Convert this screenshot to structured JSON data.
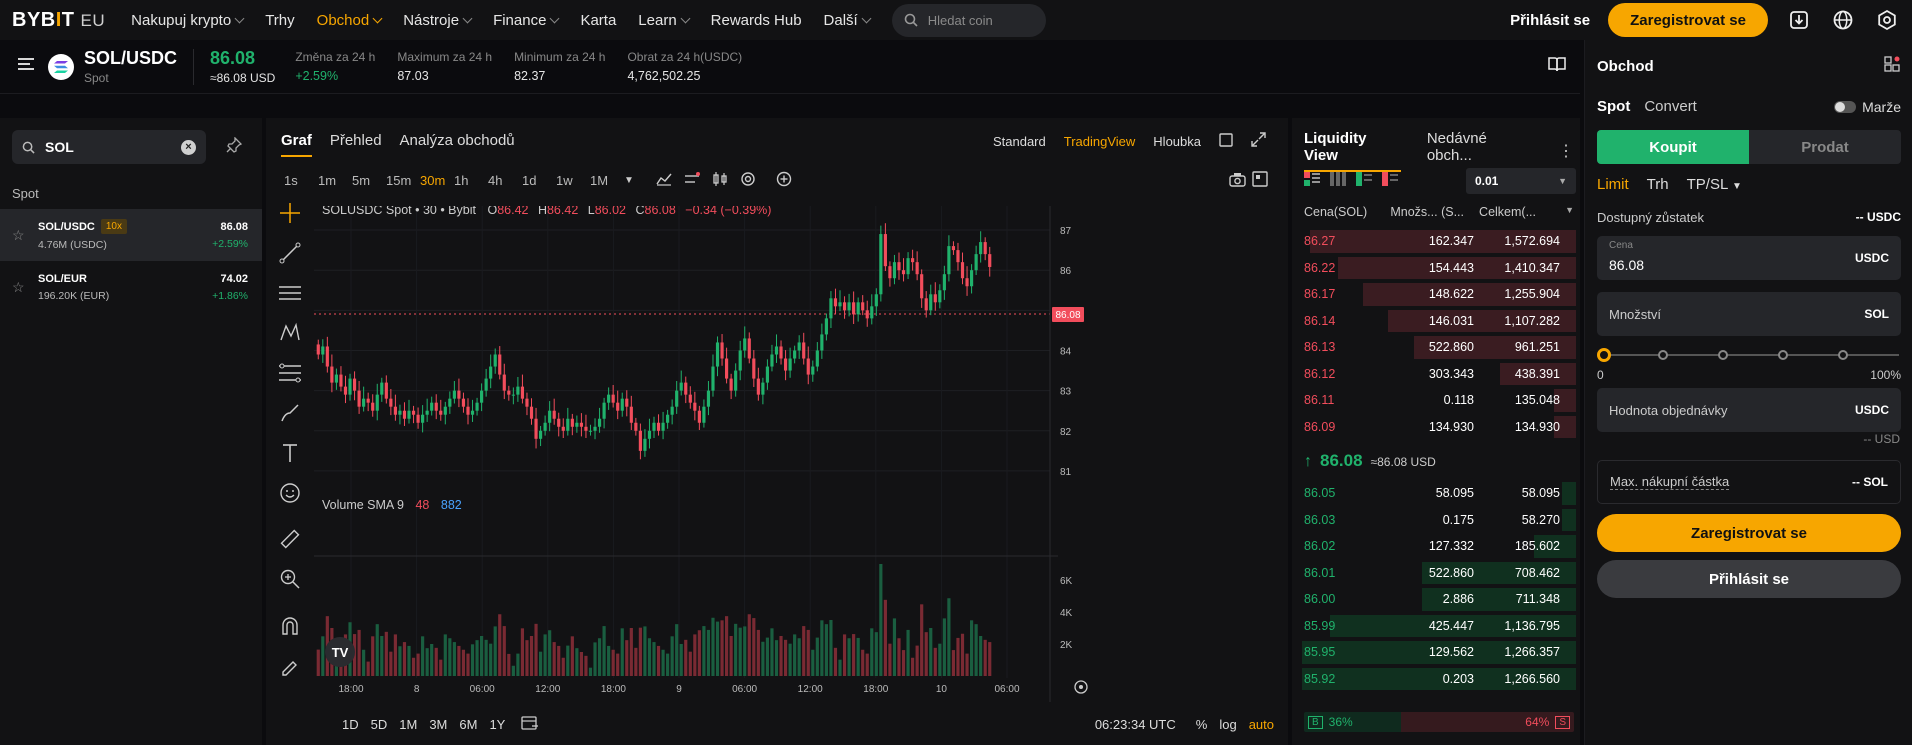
{
  "nav": {
    "logo_text": "BYBIT",
    "logo_region": "EU",
    "items": [
      {
        "label": "Nakupuj krypto",
        "dropdown": true,
        "active": false
      },
      {
        "label": "Trhy",
        "dropdown": false,
        "active": false
      },
      {
        "label": "Obchod",
        "dropdown": true,
        "active": true
      },
      {
        "label": "Nástroje",
        "dropdown": true,
        "active": false
      },
      {
        "label": "Finance",
        "dropdown": true,
        "active": false
      },
      {
        "label": "Karta",
        "dropdown": false,
        "active": false
      },
      {
        "label": "Learn",
        "dropdown": true,
        "active": false
      },
      {
        "label": "Rewards Hub",
        "dropdown": false,
        "active": false
      },
      {
        "label": "Další",
        "dropdown": true,
        "active": false
      }
    ],
    "search_placeholder": "Hledat coin",
    "login_label": "Přihlásit se",
    "register_label": "Zaregistrovat se",
    "accent_color": "#f7a600"
  },
  "ticker": {
    "pair": "SOL/USDC",
    "market": "Spot",
    "price": "86.08",
    "price_usd": "≈86.08 USD",
    "stats": [
      {
        "label": "Změna za 24 h",
        "value": "+2.59%",
        "positive": true
      },
      {
        "label": "Maximum za 24 h",
        "value": "87.03",
        "positive": false
      },
      {
        "label": "Minimum za 24 h",
        "value": "82.37",
        "positive": false
      },
      {
        "label": "Obrat za 24 h(USDC)",
        "value": "4,762,502.25",
        "positive": false
      }
    ]
  },
  "left_panel": {
    "search_value": "SOL",
    "section": "Spot",
    "pairs": [
      {
        "name": "SOL/USDC",
        "leverage": "10x",
        "volume": "4.76M (USDC)",
        "price": "86.08",
        "change": "+2.59%",
        "selected": true
      },
      {
        "name": "SOL/EUR",
        "leverage": "",
        "volume": "196.20K (EUR)",
        "price": "74.02",
        "change": "+1.86%",
        "selected": false
      }
    ]
  },
  "chart_panel": {
    "tabs": [
      "Graf",
      "Přehled",
      "Analýza obchodů"
    ],
    "views": [
      "Standard",
      "TradingView",
      "Hloubka"
    ],
    "active_view": "TradingView",
    "timeframes": [
      "1s",
      "1m",
      "5m",
      "15m",
      "30m",
      "1h",
      "4h",
      "1d",
      "1w",
      "1M"
    ],
    "active_timeframe": "30m",
    "legend_symbol": "SOLUSDC Spot • 30 • Bybit",
    "legend_o": "86.42",
    "legend_h": "86.42",
    "legend_l": "86.02",
    "legend_c": "86.08",
    "legend_change": "−0.34 (−0.39%)",
    "volume_label": "Volume SMA 9",
    "volume_v1": "48",
    "volume_v2": "882",
    "price_tag": "86.08",
    "bottom_periods": [
      "1D",
      "5D",
      "1M",
      "3M",
      "6M",
      "1Y"
    ],
    "clock": "06:23:34 UTC",
    "scale_opts": [
      "%",
      "log",
      "auto"
    ]
  },
  "chart_data": {
    "type": "candlestick",
    "title": "SOLUSDC Spot • 30 • Bybit",
    "y_ticks": [
      87.0,
      86.0,
      85.0,
      84.0,
      83.0,
      82.0,
      81.0
    ],
    "ylim": [
      80.5,
      87.3
    ],
    "x_labels": [
      "18:00",
      "8",
      "06:00",
      "12:00",
      "18:00",
      "9",
      "06:00",
      "12:00",
      "18:00",
      "10",
      "06:00"
    ],
    "volume_ticks": [
      "6K",
      "4K",
      "2K"
    ],
    "volume_max": 7000,
    "series_close": [
      83.9,
      84.1,
      83.6,
      83.2,
      83.4,
      83.1,
      82.9,
      83.3,
      83.0,
      82.6,
      82.8,
      82.7,
      82.5,
      82.9,
      83.2,
      82.8,
      82.6,
      82.4,
      82.5,
      82.3,
      82.5,
      82.4,
      82.2,
      82.4,
      82.5,
      82.7,
      82.5,
      82.4,
      82.6,
      82.8,
      83.0,
      82.8,
      82.6,
      82.4,
      82.5,
      82.7,
      83.0,
      83.3,
      83.6,
      83.9,
      83.4,
      83.0,
      82.9,
      82.9,
      83.1,
      82.8,
      82.6,
      82.3,
      81.8,
      82.0,
      82.2,
      82.5,
      82.3,
      82.1,
      82.0,
      82.3,
      82.1,
      82.2,
      82.1,
      82.0,
      82.0,
      82.1,
      82.3,
      82.7,
      82.9,
      82.7,
      82.5,
      82.8,
      82.6,
      82.2,
      82.0,
      81.5,
      81.8,
      82.0,
      82.2,
      82.0,
      82.2,
      82.4,
      82.6,
      83.0,
      83.2,
      82.9,
      82.7,
      82.5,
      82.2,
      82.6,
      83.0,
      83.6,
      84.2,
      83.8,
      83.3,
      83.0,
      83.5,
      84.0,
      84.3,
      83.8,
      83.3,
      82.9,
      83.2,
      83.6,
      83.9,
      84.1,
      83.8,
      83.5,
      83.8,
      84.0,
      84.2,
      83.8,
      83.4,
      83.6,
      84.0,
      84.4,
      84.8,
      85.3,
      85.1,
      85.2,
      85.0,
      85.2,
      84.9,
      85.2,
      85.0,
      84.8,
      85.1,
      85.4,
      86.9,
      86.1,
      85.8,
      86.2,
      86.0,
      85.9,
      86.3,
      86.2,
      85.9,
      85.3,
      85.0,
      85.4,
      85.2,
      85.5,
      85.9,
      86.6,
      86.5,
      86.2,
      85.8,
      85.6,
      86.0,
      86.4,
      86.7,
      86.4,
      86.08
    ]
  },
  "book": {
    "tabs": [
      "Liquidity View",
      "Nedávné obch..."
    ],
    "precision": "0.01",
    "headers": [
      "Cena(SOL)",
      "Množs... (S...",
      "Celkem(..."
    ],
    "asks": [
      {
        "price": "86.27",
        "qty": "162.347",
        "total": "1,572.694",
        "fill": 0.95
      },
      {
        "price": "86.22",
        "qty": "154.443",
        "total": "1,410.347",
        "fill": 0.85
      },
      {
        "price": "86.17",
        "qty": "148.622",
        "total": "1,255.904",
        "fill": 0.76
      },
      {
        "price": "86.14",
        "qty": "146.031",
        "total": "1,107.282",
        "fill": 0.67
      },
      {
        "price": "86.13",
        "qty": "522.860",
        "total": "961.251",
        "fill": 0.58
      },
      {
        "price": "86.12",
        "qty": "303.343",
        "total": "438.391",
        "fill": 0.27
      },
      {
        "price": "86.11",
        "qty": "0.118",
        "total": "135.048",
        "fill": 0.08
      },
      {
        "price": "86.09",
        "qty": "134.930",
        "total": "134.930",
        "fill": 0.08
      }
    ],
    "mid_price": "86.08",
    "mid_usd": "≈86.08 USD",
    "bids": [
      {
        "price": "86.05",
        "qty": "58.095",
        "total": "58.095",
        "fill": 0.05
      },
      {
        "price": "86.03",
        "qty": "0.175",
        "total": "58.270",
        "fill": 0.05
      },
      {
        "price": "86.02",
        "qty": "127.332",
        "total": "185.602",
        "fill": 0.15
      },
      {
        "price": "86.01",
        "qty": "522.860",
        "total": "708.462",
        "fill": 0.55
      },
      {
        "price": "86.00",
        "qty": "2.886",
        "total": "711.348",
        "fill": 0.55
      },
      {
        "price": "85.99",
        "qty": "425.447",
        "total": "1,136.795",
        "fill": 0.88
      },
      {
        "price": "85.95",
        "qty": "129.562",
        "total": "1,266.357",
        "fill": 0.98
      },
      {
        "price": "85.92",
        "qty": "0.203",
        "total": "1,266.560",
        "fill": 0.98
      }
    ],
    "buy_label": "B",
    "buy_pct": "36%",
    "sell_pct": "64%",
    "sell_label": "S",
    "buy_ratio": 0.36
  },
  "order": {
    "title": "Obchod",
    "mode_spot": "Spot",
    "mode_convert": "Convert",
    "margin_label": "Marže",
    "buy_label": "Koupit",
    "sell_label": "Prodat",
    "types": [
      "Limit",
      "Trh",
      "TP/SL"
    ],
    "available_label": "Dostupný zůstatek",
    "available_value": "-- USDC",
    "price_label": "Cena",
    "price_value": "86.08",
    "price_unit": "USDC",
    "qty_placeholder": "Množství",
    "qty_unit": "SOL",
    "slider_min": "0",
    "slider_max": "100%",
    "slider_value": 0,
    "order_value_label": "Hodnota objednávky",
    "order_value_unit": "USDC",
    "order_value_note": "-- USD",
    "max_buy_label": "Max. nákupní částka",
    "max_buy_value": "-- SOL",
    "register_label": "Zaregistrovat se",
    "login_label": "Přihlásit se"
  }
}
